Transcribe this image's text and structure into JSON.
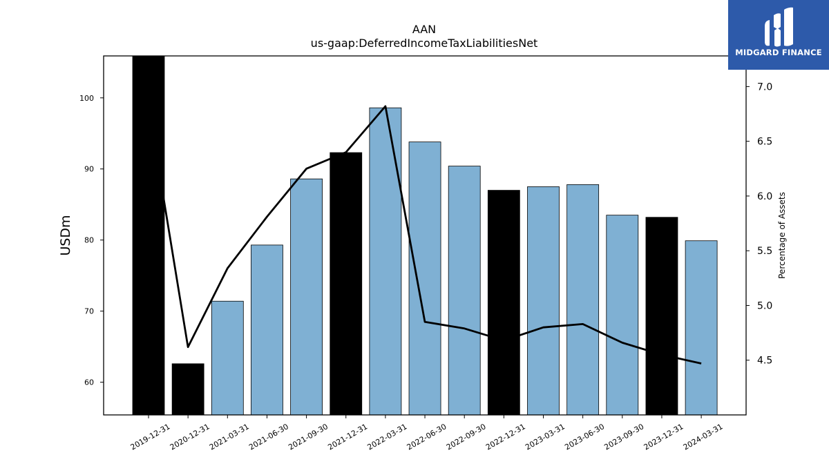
{
  "chart_data": {
    "type": "bar",
    "title": "AAN",
    "subtitle": "us-gaap:DeferredIncomeTaxLiabilitiesNet",
    "ylabel": "USDm",
    "y2label": "Percentage of Assets",
    "categories": [
      "2019-12-31",
      "2020-12-31",
      "2021-03-31",
      "2021-06-30",
      "2021-09-30",
      "2021-12-31",
      "2022-03-31",
      "2022-06-30",
      "2022-09-30",
      "2022-12-31",
      "2023-03-31",
      "2023-06-30",
      "2023-09-30",
      "2023-12-31",
      "2024-03-31"
    ],
    "series": [
      {
        "type": "bar",
        "values": [
          105.9,
          62.6,
          71.4,
          79.3,
          88.6,
          92.3,
          98.6,
          93.8,
          90.4,
          87.0,
          87.5,
          87.8,
          83.5,
          83.2,
          79.9
        ],
        "highlight": [
          true,
          true,
          false,
          false,
          false,
          true,
          false,
          false,
          false,
          true,
          false,
          false,
          false,
          true,
          false
        ]
      },
      {
        "type": "line",
        "axis": "right",
        "values": [
          6.82,
          4.62,
          5.34,
          5.81,
          6.25,
          6.4,
          6.82,
          4.85,
          4.79,
          4.68,
          4.8,
          4.83,
          4.66,
          4.55,
          4.47
        ]
      }
    ],
    "ylim": [
      55.4,
      105.9
    ],
    "y2lim": [
      4.0,
      7.28
    ],
    "yticks": [
      "60",
      "70",
      "80",
      "90",
      "100"
    ],
    "y2ticks": [
      "4.5",
      "5.0",
      "5.5",
      "6.0",
      "6.5",
      "7.0"
    ],
    "colors": {
      "bar": "#7fb0d3",
      "bar_highlight": "#000000",
      "line": "#000000"
    }
  },
  "logo": {
    "text": "MIDGARD FINANCE",
    "background": "#2d5aaa"
  }
}
